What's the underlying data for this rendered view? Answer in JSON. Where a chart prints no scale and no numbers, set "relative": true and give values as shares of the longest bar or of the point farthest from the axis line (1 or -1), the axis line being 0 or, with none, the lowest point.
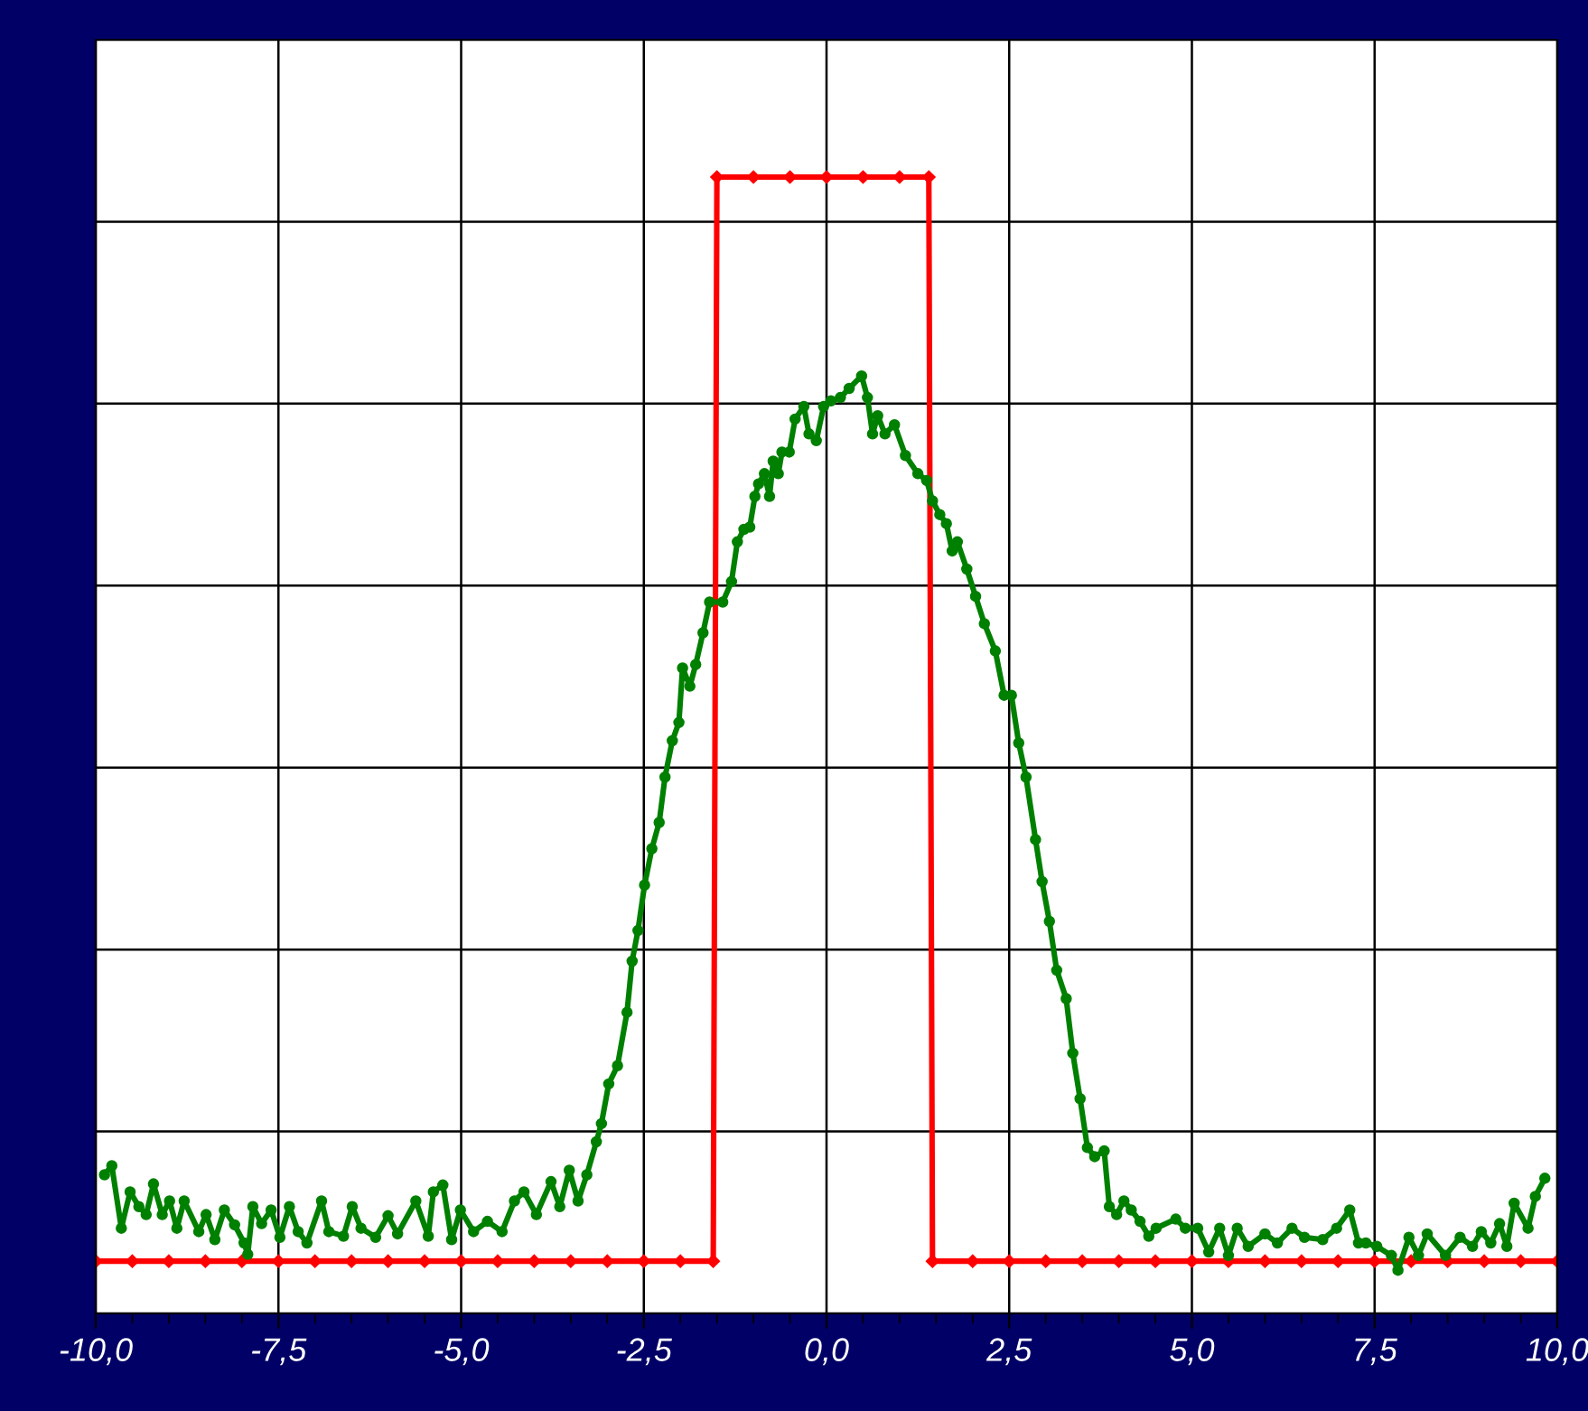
{
  "chart_data": {
    "type": "line",
    "relative": true,
    "grid": true,
    "tick_labels": "x",
    "xlim": [
      -10,
      10
    ],
    "xticks": [
      {
        "value": -10,
        "label": "-10,0"
      },
      {
        "value": -7.5,
        "label": "-7,5"
      },
      {
        "value": -5,
        "label": "-5,0"
      },
      {
        "value": -2.5,
        "label": "-2,5"
      },
      {
        "value": 0,
        "label": "0,0"
      },
      {
        "value": 2.5,
        "label": "2,5"
      },
      {
        "value": 5,
        "label": "5,0"
      },
      {
        "value": 7.5,
        "label": "7,5"
      },
      {
        "value": 10,
        "label": "10,0"
      }
    ],
    "series": [
      {
        "color": "#ff0000",
        "marker": "diamond",
        "x": [
          -10,
          -9.5,
          -9,
          -8.5,
          -8,
          -7.5,
          -7,
          -6.5,
          -6,
          -5.5,
          -5,
          -4.5,
          -4,
          -3.5,
          -3,
          -2.5,
          -2,
          -1.55,
          -1.5,
          -1,
          -0.5,
          0,
          0.5,
          1,
          1.4,
          1.45,
          2,
          2.5,
          3,
          3.5,
          4,
          4.5,
          5,
          5.5,
          6,
          6.5,
          7,
          7.5,
          8,
          8.5,
          9,
          9.5,
          10
        ],
        "values": [
          0.046,
          0.046,
          0.046,
          0.046,
          0.046,
          0.046,
          0.046,
          0.046,
          0.046,
          0.046,
          0.046,
          0.046,
          0.046,
          0.046,
          0.046,
          0.046,
          0.046,
          0.046,
          1,
          1,
          1,
          1,
          1,
          1,
          1,
          0.046,
          0.046,
          0.046,
          0.046,
          0.046,
          0.046,
          0.046,
          0.046,
          0.046,
          0.046,
          0.046,
          0.046,
          0.046,
          0.046,
          0.046,
          0.046,
          0.046,
          0.046
        ]
      },
      {
        "color": "#008000",
        "marker": "circle",
        "x": [
          -9.88,
          -9.78,
          -9.65,
          -9.53,
          -9.41,
          -9.31,
          -9.21,
          -9.09,
          -8.99,
          -8.89,
          -8.79,
          -8.59,
          -8.49,
          -8.37,
          -8.24,
          -8.1,
          -7.97,
          -7.92,
          -7.85,
          -7.73,
          -7.6,
          -7.48,
          -7.35,
          -7.23,
          -7.11,
          -6.91,
          -6.81,
          -6.61,
          -6.49,
          -6.37,
          -6.17,
          -6.0,
          -5.87,
          -5.62,
          -5.45,
          -5.38,
          -5.25,
          -5.13,
          -5.01,
          -4.83,
          -4.64,
          -4.44,
          -4.27,
          -4.14,
          -3.97,
          -3.77,
          -3.65,
          -3.52,
          -3.4,
          -3.28,
          -3.15,
          -3.08,
          -2.98,
          -2.86,
          -2.73,
          -2.66,
          -2.58,
          -2.49,
          -2.39,
          -2.29,
          -2.21,
          -2.11,
          -2.02,
          -1.97,
          -1.87,
          -1.79,
          -1.69,
          -1.6,
          -1.42,
          -1.3,
          -1.22,
          -1.13,
          -1.05,
          -0.98,
          -0.93,
          -0.85,
          -0.78,
          -0.73,
          -0.66,
          -0.61,
          -0.51,
          -0.43,
          -0.31,
          -0.24,
          -0.14,
          -0.04,
          0.06,
          0.19,
          0.31,
          0.48,
          0.56,
          0.63,
          0.7,
          0.8,
          0.93,
          1.08,
          1.25,
          1.37,
          1.45,
          1.55,
          1.64,
          1.72,
          1.79,
          1.92,
          2.04,
          2.16,
          2.31,
          2.43,
          2.53,
          2.63,
          2.73,
          2.86,
          2.95,
          3.05,
          3.15,
          3.28,
          3.37,
          3.47,
          3.57,
          3.67,
          3.8,
          3.87,
          3.97,
          4.07,
          4.17,
          4.29,
          4.41,
          4.51,
          4.78,
          4.91,
          5.08,
          5.23,
          5.38,
          5.5,
          5.62,
          5.77,
          6.0,
          6.17,
          6.37,
          6.54,
          6.79,
          6.98,
          7.16,
          7.28,
          7.38,
          7.53,
          7.73,
          7.82,
          7.97,
          8.1,
          8.22,
          8.47,
          8.67,
          8.84,
          8.96,
          9.09,
          9.21,
          9.31,
          9.41,
          9.6,
          9.7,
          9.83
        ],
        "values": [
          0.122,
          0.13,
          0.075,
          0.107,
          0.094,
          0.087,
          0.114,
          0.087,
          0.099,
          0.075,
          0.099,
          0.072,
          0.087,
          0.065,
          0.091,
          0.078,
          0.062,
          0.052,
          0.094,
          0.079,
          0.091,
          0.067,
          0.094,
          0.072,
          0.062,
          0.099,
          0.072,
          0.068,
          0.094,
          0.075,
          0.067,
          0.086,
          0.07,
          0.099,
          0.068,
          0.107,
          0.113,
          0.065,
          0.091,
          0.072,
          0.081,
          0.072,
          0.099,
          0.107,
          0.087,
          0.116,
          0.094,
          0.126,
          0.099,
          0.122,
          0.151,
          0.167,
          0.202,
          0.218,
          0.265,
          0.31,
          0.337,
          0.377,
          0.409,
          0.432,
          0.472,
          0.504,
          0.52,
          0.568,
          0.552,
          0.571,
          0.599,
          0.626,
          0.626,
          0.644,
          0.679,
          0.69,
          0.692,
          0.719,
          0.73,
          0.739,
          0.719,
          0.75,
          0.739,
          0.758,
          0.758,
          0.787,
          0.798,
          0.774,
          0.768,
          0.798,
          0.803,
          0.806,
          0.814,
          0.825,
          0.806,
          0.774,
          0.79,
          0.774,
          0.782,
          0.755,
          0.739,
          0.733,
          0.715,
          0.703,
          0.695,
          0.671,
          0.679,
          0.655,
          0.631,
          0.607,
          0.583,
          0.544,
          0.544,
          0.502,
          0.472,
          0.417,
          0.38,
          0.345,
          0.302,
          0.277,
          0.229,
          0.189,
          0.146,
          0.138,
          0.143,
          0.094,
          0.087,
          0.099,
          0.091,
          0.081,
          0.068,
          0.075,
          0.083,
          0.075,
          0.075,
          0.054,
          0.075,
          0.051,
          0.075,
          0.059,
          0.07,
          0.062,
          0.075,
          0.067,
          0.065,
          0.075,
          0.091,
          0.062,
          0.062,
          0.059,
          0.051,
          0.038,
          0.067,
          0.051,
          0.07,
          0.051,
          0.067,
          0.059,
          0.072,
          0.062,
          0.079,
          0.059,
          0.097,
          0.075,
          0.103,
          0.119
        ]
      }
    ]
  }
}
